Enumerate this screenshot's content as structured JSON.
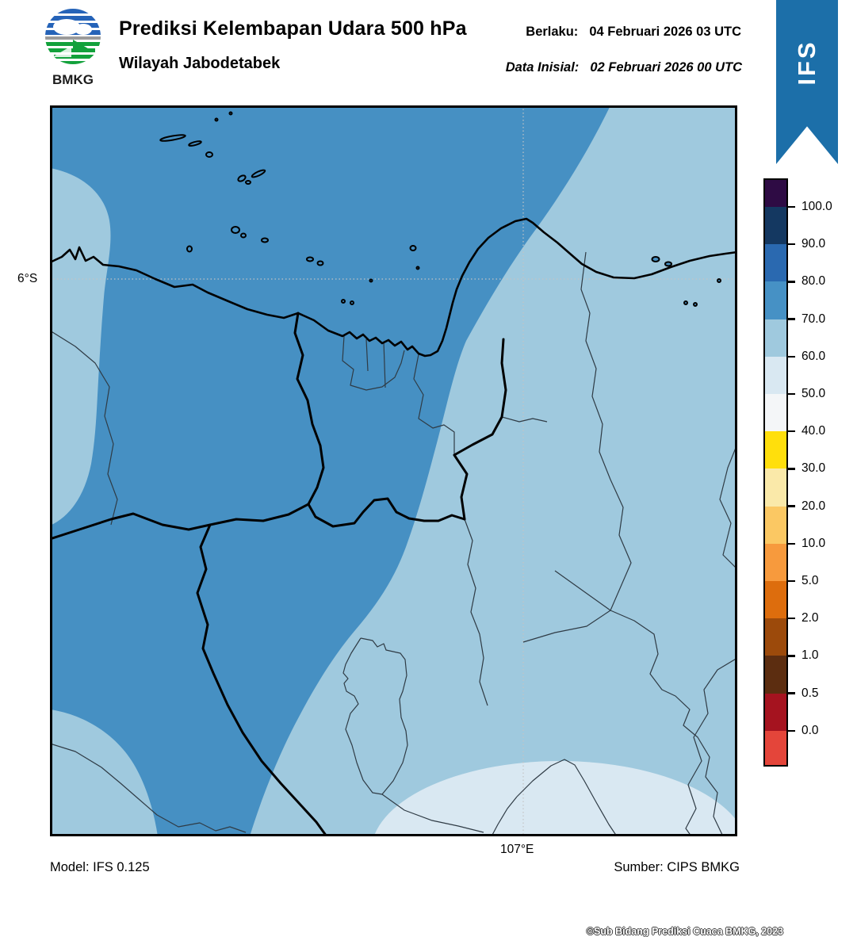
{
  "header": {
    "title": "Prediksi Kelembapan Udara 500 hPa",
    "subtitle": "Wilayah Jabodetabek",
    "valid_label": "Berlaku:",
    "valid_value": "04 Februari 2026 03 UTC",
    "init_label": "Data Inisial:",
    "init_value": "02 Februari 2026 00 UTC",
    "logo_text": "BMKG",
    "ribbon_text": "IFS"
  },
  "map": {
    "lat_tick_label": "6°S",
    "lon_tick_label": "107°E",
    "copyright": "©Sub Bidang Prediksi Cuaca BMKG, 2023",
    "fill_colors": {
      "rh_70_80_dark_blue": "#4690c3",
      "rh_60_70_light_blue": "#9fc9de",
      "rh_50_60_pale_blue": "#d9e8f2"
    }
  },
  "colorbar": {
    "tick_labels": [
      "100.0",
      "90.0",
      "80.0",
      "70.0",
      "60.0",
      "50.0",
      "40.0",
      "30.0",
      "20.0",
      "10.0",
      "5.0",
      "2.0",
      "1.0",
      "0.5",
      "0.0"
    ],
    "segment_colors_top_to_bottom": [
      "#2e0b44",
      "#143861",
      "#2a69b0",
      "#4691c5",
      "#9fc9de",
      "#d9e8f2",
      "#f4f6f8",
      "#ffdf0c",
      "#fae9a9",
      "#fbc863",
      "#f79a3d",
      "#dd6d0d",
      "#9c4a0b",
      "#5c2d10",
      "#a5131f",
      "#e4453a"
    ]
  },
  "footer": {
    "model": "Model: IFS 0.125",
    "source": "Sumber: CIPS BMKG"
  },
  "colors": {
    "ribbon_blue": "#1c6fa9",
    "logo_blue": "#2563b8",
    "logo_green": "#12a13b"
  }
}
